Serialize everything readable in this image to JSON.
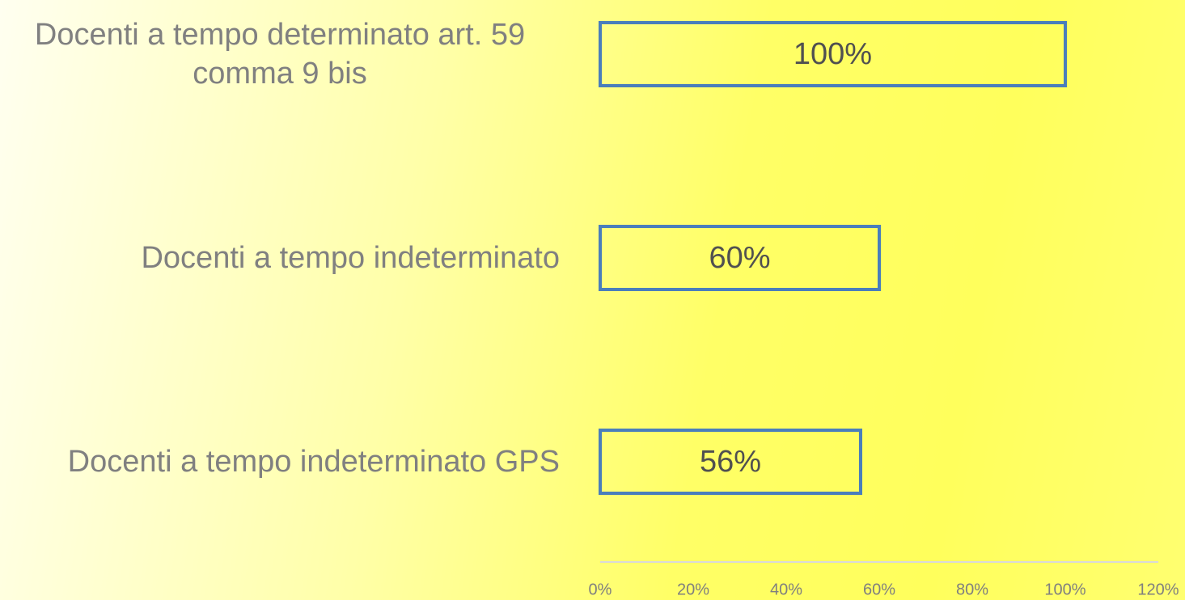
{
  "chart_data": {
    "type": "bar",
    "orientation": "horizontal",
    "categories": [
      "Docenti a tempo determinato art. 59 comma 9 bis",
      "Docenti a tempo indeterminato",
      "Docenti a tempo indeterminato GPS"
    ],
    "values": [
      100,
      60,
      56
    ],
    "value_labels": [
      "100%",
      "60%",
      "56%"
    ],
    "color": "#4a7ebb",
    "xlim": [
      0,
      120
    ],
    "xticks": [
      {
        "value": 0,
        "label": "0%"
      },
      {
        "value": 20,
        "label": "20%"
      },
      {
        "value": 40,
        "label": "40%"
      },
      {
        "value": 60,
        "label": "60%"
      },
      {
        "value": 80,
        "label": "80%"
      },
      {
        "value": 100,
        "label": "100%"
      },
      {
        "value": 120,
        "label": "120%"
      }
    ],
    "grid": false
  }
}
